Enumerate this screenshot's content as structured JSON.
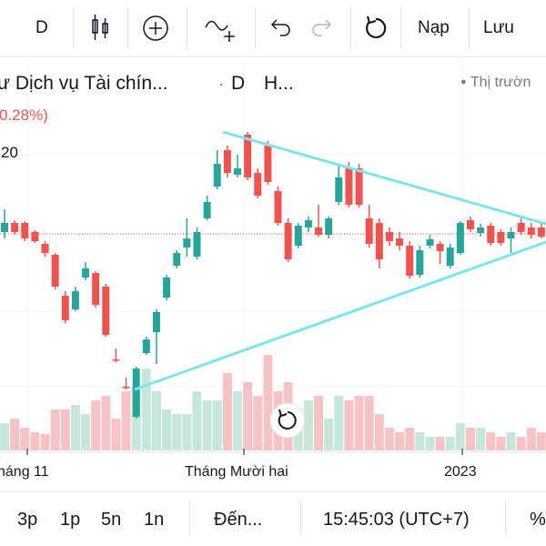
{
  "toolbar": {
    "interval": "D",
    "reload": "Nạp",
    "save": "Lưu"
  },
  "legend": {
    "symbol": "ư Dịch vụ Tài chín...",
    "interval": "D",
    "exchange": "H...",
    "market": "Thị trườn",
    "change": "0.28%)",
    "value": "20"
  },
  "chart_data": {
    "type": "candlestick",
    "x_labels": [
      "háng 11",
      "Tháng Mười hai",
      "2023"
    ],
    "up_color": "#26a69a",
    "down_color": "#ef5350",
    "volume_up_color": "#c5e6d9",
    "volume_down_color": "#f6c3c5",
    "ylim": [
      0,
      50
    ],
    "vlim": [
      0,
      120
    ],
    "candles": [
      [
        24.5,
        27,
        23.8,
        25.5
      ],
      [
        25.5,
        25.8,
        24.2,
        24.5
      ],
      [
        25.5,
        25.7,
        23.5,
        23.8
      ],
      [
        24.5,
        24.7,
        23.3,
        23.5
      ],
      [
        23.2,
        23.5,
        21.8,
        22.2
      ],
      [
        22,
        22.2,
        18.2,
        18.5
      ],
      [
        17.5,
        18,
        14.5,
        14.8
      ],
      [
        16,
        18.5,
        15.8,
        18
      ],
      [
        19.5,
        21.2,
        19.2,
        20.5
      ],
      [
        20,
        20.2,
        16.2,
        16.5
      ],
      [
        18.5,
        18.8,
        13,
        13.2
      ],
      [
        10.5,
        11.7,
        10.2,
        10.4
      ],
      [
        7.5,
        8.5,
        7.2,
        7.4
      ],
      [
        4.2,
        9.7,
        4,
        9.5
      ],
      [
        11.2,
        13,
        11,
        12.7
      ],
      [
        13.5,
        16,
        10,
        15.7
      ],
      [
        17.3,
        19.8,
        17,
        19.5
      ],
      [
        20.8,
        22.5,
        20.5,
        22.2
      ],
      [
        22.8,
        26,
        21.8,
        23.8
      ],
      [
        21.8,
        25,
        21.5,
        24.5
      ],
      [
        26,
        28.5,
        25.8,
        27.8
      ],
      [
        29.5,
        33.5,
        29.2,
        32
      ],
      [
        33.5,
        34,
        30.5,
        31
      ],
      [
        30.8,
        33,
        30.5,
        31.5
      ],
      [
        35.2,
        35.5,
        30.2,
        30.5
      ],
      [
        31,
        31.5,
        28.2,
        28.5
      ],
      [
        34,
        34.5,
        29.7,
        30
      ],
      [
        29,
        29.5,
        25.2,
        25.5
      ],
      [
        25.5,
        26,
        21.2,
        21.5
      ],
      [
        23,
        25.5,
        22.7,
        25.2
      ],
      [
        25,
        26.2,
        24.5,
        25.8
      ],
      [
        25,
        27.5,
        24,
        24.2
      ],
      [
        24.2,
        26.2,
        23.8,
        26
      ],
      [
        27.8,
        32,
        27.5,
        30.5
      ],
      [
        31.5,
        32.2,
        27.2,
        27.5
      ],
      [
        31.5,
        32,
        27.2,
        27.5
      ],
      [
        26,
        27.5,
        22.8,
        23.2
      ],
      [
        25.5,
        26,
        20.5,
        21.5
      ],
      [
        24.5,
        25,
        23,
        23.5
      ],
      [
        23.8,
        24.5,
        22.5,
        23
      ],
      [
        23,
        23.5,
        19.4,
        19.7
      ],
      [
        19.8,
        23,
        19.5,
        22.5
      ],
      [
        23,
        24.2,
        22.7,
        23.7
      ],
      [
        23.2,
        23.5,
        21,
        22.4
      ],
      [
        20.8,
        23.2,
        20.5,
        22.8
      ],
      [
        22.2,
        25.7,
        22,
        25.5
      ],
      [
        25.8,
        26.2,
        24.5,
        24.8
      ],
      [
        24.4,
        25.4,
        24,
        25
      ],
      [
        25.2,
        25.5,
        23,
        23.3
      ],
      [
        24.5,
        24.8,
        23,
        23.3
      ],
      [
        23.8,
        25,
        22.2,
        24.5
      ],
      [
        25.5,
        26,
        24.2,
        24.5
      ],
      [
        25,
        25.5,
        23.8,
        24.2
      ],
      [
        25,
        25.5,
        23.8,
        24
      ]
    ],
    "volumes": [
      30,
      35,
      25,
      20,
      18,
      45,
      45,
      50,
      40,
      55,
      60,
      35,
      65,
      70,
      90,
      65,
      45,
      40,
      40,
      65,
      55,
      55,
      85,
      65,
      75,
      60,
      105,
      65,
      75,
      45,
      55,
      60,
      35,
      60,
      55,
      60,
      60,
      40,
      25,
      20,
      25,
      20,
      15,
      15,
      15,
      30,
      25,
      25,
      20,
      15,
      20,
      15,
      25,
      20
    ]
  },
  "bottom_bar": {
    "ranges": [
      "3p",
      "1p",
      "5n",
      "1n"
    ],
    "goto": "Đến...",
    "time": "15:45:03 (UTC+7)",
    "percent": "%"
  }
}
